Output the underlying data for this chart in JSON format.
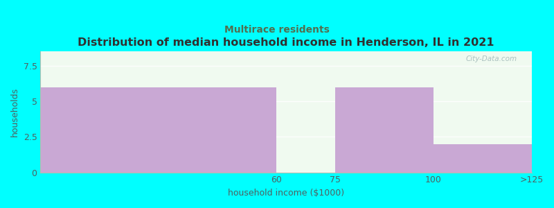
{
  "title": "Distribution of median household income in Henderson, IL in 2021",
  "subtitle": "Multirace residents",
  "xlabel": "household income ($1000)",
  "ylabel": "households",
  "bar_color": "#C9A8D4",
  "background_color": "#00FFFF",
  "plot_bg_color": "#F0FAF0",
  "ylim": [
    0,
    8.5
  ],
  "yticks": [
    0,
    2.5,
    5,
    7.5
  ],
  "title_fontsize": 11.5,
  "subtitle_fontsize": 10,
  "subtitle_color": "#507050",
  "axis_label_fontsize": 9,
  "tick_fontsize": 9,
  "tick_color": "#506060",
  "watermark": "City-Data.com",
  "hist_edges": [
    0,
    60,
    75,
    100,
    125
  ],
  "hist_values": [
    6,
    0,
    6,
    2
  ],
  "xtick_positions": [
    60,
    75,
    100,
    125
  ],
  "xtick_labels": [
    "60",
    "75",
    "100",
    ">125"
  ]
}
